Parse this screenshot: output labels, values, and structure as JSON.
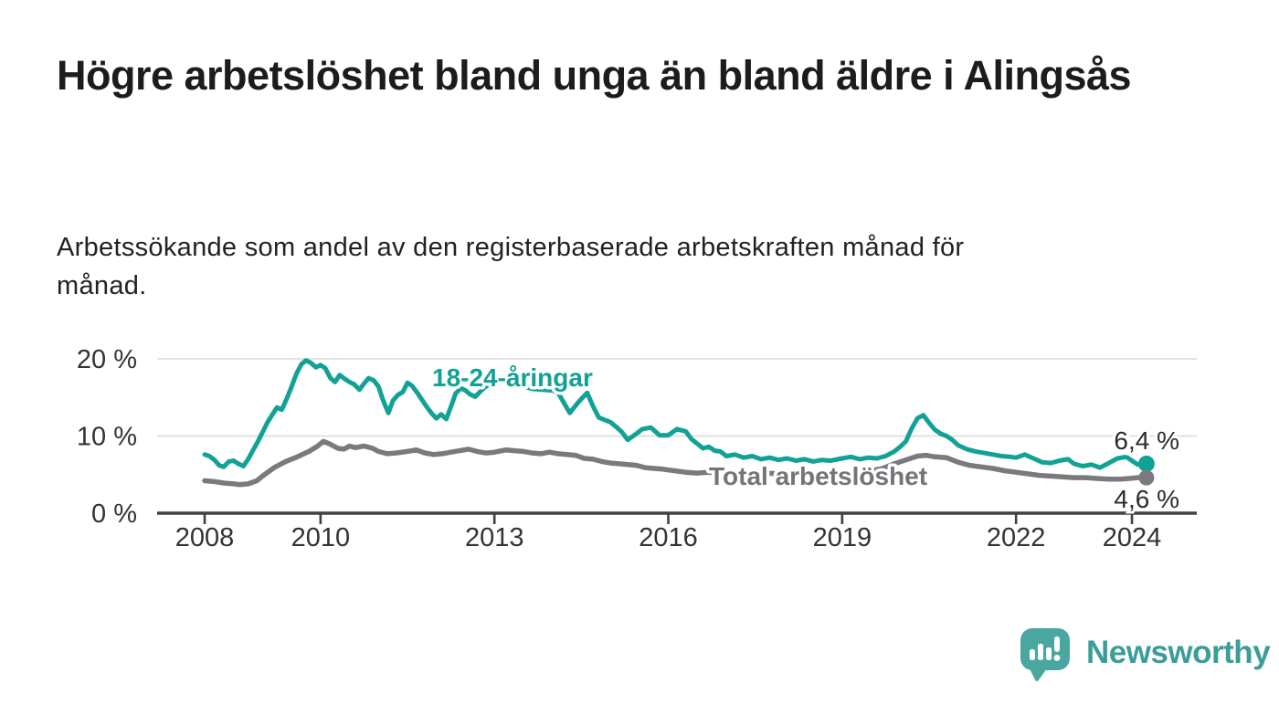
{
  "header": {
    "title": "Högre arbetslöshet bland unga än bland äldre i Alingsås",
    "subtitle": "Arbetssökande som andel av den registerbaserade arbetskraften månad för månad."
  },
  "chart_data": {
    "type": "line",
    "title": "Högre arbetslöshet bland unga än bland äldre i Alingsås",
    "unit": "%",
    "grid": "horizontal-only",
    "legend": "inline-series-labels",
    "x_axis": {
      "range": [
        2008,
        2025.1
      ],
      "ticks": [
        2008,
        2010,
        2013,
        2016,
        2019,
        2022,
        2024
      ],
      "tick_labels": [
        "2008",
        "2010",
        "2013",
        "2016",
        "2019",
        "2022",
        "2024"
      ]
    },
    "y_axis": {
      "range": [
        0,
        21
      ],
      "ticks": [
        0,
        10,
        20
      ],
      "tick_labels": [
        "0 %",
        "10 %",
        "20 %"
      ]
    },
    "colors": {
      "young": "#12a295",
      "total": "#7b787e",
      "grid": "#d9d9d9",
      "axis": "#404040",
      "tick_text": "#333333",
      "value_text": "#2b2b2b"
    },
    "series": [
      {
        "name": "18-24-åringar",
        "color": "#12a295",
        "label_color": "#12a295",
        "end_label": "6,4 %",
        "end_value": 6.4,
        "points": [
          [
            2008.0,
            7.6
          ],
          [
            2008.08,
            7.4
          ],
          [
            2008.17,
            6.9
          ],
          [
            2008.25,
            6.2
          ],
          [
            2008.33,
            6.0
          ],
          [
            2008.42,
            6.7
          ],
          [
            2008.5,
            6.8
          ],
          [
            2008.58,
            6.4
          ],
          [
            2008.67,
            6.1
          ],
          [
            2008.75,
            7.0
          ],
          [
            2008.83,
            8.1
          ],
          [
            2008.92,
            9.3
          ],
          [
            2009.0,
            10.5
          ],
          [
            2009.08,
            11.7
          ],
          [
            2009.17,
            12.8
          ],
          [
            2009.25,
            13.7
          ],
          [
            2009.33,
            13.4
          ],
          [
            2009.42,
            14.9
          ],
          [
            2009.5,
            16.4
          ],
          [
            2009.58,
            18.0
          ],
          [
            2009.67,
            19.3
          ],
          [
            2009.75,
            19.8
          ],
          [
            2009.83,
            19.5
          ],
          [
            2009.92,
            18.9
          ],
          [
            2010.0,
            19.2
          ],
          [
            2010.08,
            18.8
          ],
          [
            2010.17,
            17.5
          ],
          [
            2010.25,
            17.0
          ],
          [
            2010.33,
            17.9
          ],
          [
            2010.42,
            17.4
          ],
          [
            2010.5,
            17.0
          ],
          [
            2010.58,
            16.7
          ],
          [
            2010.67,
            16.0
          ],
          [
            2010.75,
            16.8
          ],
          [
            2010.83,
            17.5
          ],
          [
            2010.92,
            17.2
          ],
          [
            2011.0,
            16.4
          ],
          [
            2011.08,
            14.6
          ],
          [
            2011.17,
            13.0
          ],
          [
            2011.25,
            14.6
          ],
          [
            2011.33,
            15.3
          ],
          [
            2011.42,
            15.7
          ],
          [
            2011.5,
            16.9
          ],
          [
            2011.58,
            16.5
          ],
          [
            2011.67,
            15.6
          ],
          [
            2011.75,
            14.7
          ],
          [
            2011.83,
            13.8
          ],
          [
            2011.92,
            12.9
          ],
          [
            2012.0,
            12.3
          ],
          [
            2012.08,
            12.8
          ],
          [
            2012.17,
            12.2
          ],
          [
            2012.25,
            13.8
          ],
          [
            2012.33,
            15.5
          ],
          [
            2012.42,
            16.2
          ],
          [
            2012.5,
            15.9
          ],
          [
            2012.58,
            15.4
          ],
          [
            2012.67,
            15.1
          ],
          [
            2012.75,
            15.7
          ],
          [
            2012.83,
            16.3
          ],
          [
            2012.92,
            16.7
          ],
          [
            2013.0,
            16.9
          ],
          [
            2013.17,
            17.0
          ],
          [
            2013.33,
            16.7
          ],
          [
            2013.5,
            16.4
          ],
          [
            2013.67,
            16.1
          ],
          [
            2013.83,
            16.0
          ],
          [
            2014.0,
            15.9
          ],
          [
            2014.1,
            15.6
          ],
          [
            2014.2,
            14.3
          ],
          [
            2014.3,
            13.0
          ],
          [
            2014.45,
            14.4
          ],
          [
            2014.6,
            15.6
          ],
          [
            2014.7,
            13.9
          ],
          [
            2014.8,
            12.4
          ],
          [
            2014.9,
            12.1
          ],
          [
            2015.0,
            11.8
          ],
          [
            2015.1,
            11.2
          ],
          [
            2015.2,
            10.5
          ],
          [
            2015.3,
            9.5
          ],
          [
            2015.45,
            10.3
          ],
          [
            2015.55,
            10.9
          ],
          [
            2015.7,
            11.1
          ],
          [
            2015.85,
            10.1
          ],
          [
            2016.0,
            10.1
          ],
          [
            2016.15,
            10.9
          ],
          [
            2016.3,
            10.6
          ],
          [
            2016.4,
            9.6
          ],
          [
            2016.5,
            9.0
          ],
          [
            2016.6,
            8.4
          ],
          [
            2016.7,
            8.6
          ],
          [
            2016.8,
            8.1
          ],
          [
            2016.9,
            8.0
          ],
          [
            2017.0,
            7.4
          ],
          [
            2017.15,
            7.6
          ],
          [
            2017.3,
            7.2
          ],
          [
            2017.45,
            7.4
          ],
          [
            2017.6,
            7.0
          ],
          [
            2017.75,
            7.2
          ],
          [
            2017.9,
            6.9
          ],
          [
            2018.05,
            7.1
          ],
          [
            2018.2,
            6.8
          ],
          [
            2018.35,
            7.0
          ],
          [
            2018.5,
            6.7
          ],
          [
            2018.65,
            6.9
          ],
          [
            2018.8,
            6.8
          ],
          [
            2019.0,
            7.1
          ],
          [
            2019.15,
            7.3
          ],
          [
            2019.3,
            7.0
          ],
          [
            2019.45,
            7.2
          ],
          [
            2019.6,
            7.1
          ],
          [
            2019.75,
            7.4
          ],
          [
            2019.9,
            8.0
          ],
          [
            2020.0,
            8.6
          ],
          [
            2020.1,
            9.3
          ],
          [
            2020.2,
            11.0
          ],
          [
            2020.3,
            12.3
          ],
          [
            2020.4,
            12.7
          ],
          [
            2020.5,
            11.7
          ],
          [
            2020.6,
            10.8
          ],
          [
            2020.7,
            10.3
          ],
          [
            2020.8,
            10.0
          ],
          [
            2020.9,
            9.5
          ],
          [
            2021.0,
            8.8
          ],
          [
            2021.15,
            8.3
          ],
          [
            2021.3,
            8.0
          ],
          [
            2021.45,
            7.8
          ],
          [
            2021.6,
            7.6
          ],
          [
            2021.75,
            7.4
          ],
          [
            2021.9,
            7.3
          ],
          [
            2022.0,
            7.2
          ],
          [
            2022.15,
            7.6
          ],
          [
            2022.3,
            7.1
          ],
          [
            2022.45,
            6.6
          ],
          [
            2022.6,
            6.5
          ],
          [
            2022.75,
            6.8
          ],
          [
            2022.9,
            7.0
          ],
          [
            2023.0,
            6.4
          ],
          [
            2023.15,
            6.1
          ],
          [
            2023.3,
            6.3
          ],
          [
            2023.45,
            5.9
          ],
          [
            2023.6,
            6.5
          ],
          [
            2023.75,
            7.1
          ],
          [
            2023.9,
            7.3
          ],
          [
            2024.0,
            6.8
          ],
          [
            2024.1,
            6.3
          ],
          [
            2024.25,
            6.4
          ]
        ]
      },
      {
        "name": "Total arbetslöshet",
        "color": "#7b787e",
        "label_color": "#767379",
        "end_label": "4,6 %",
        "end_value": 4.6,
        "points": [
          [
            2008.0,
            4.2
          ],
          [
            2008.17,
            4.1
          ],
          [
            2008.33,
            3.9
          ],
          [
            2008.5,
            3.8
          ],
          [
            2008.6,
            3.7
          ],
          [
            2008.75,
            3.8
          ],
          [
            2008.9,
            4.2
          ],
          [
            2009.0,
            4.8
          ],
          [
            2009.2,
            5.9
          ],
          [
            2009.4,
            6.7
          ],
          [
            2009.6,
            7.3
          ],
          [
            2009.8,
            8.0
          ],
          [
            2009.95,
            8.7
          ],
          [
            2010.05,
            9.3
          ],
          [
            2010.15,
            9.0
          ],
          [
            2010.3,
            8.4
          ],
          [
            2010.4,
            8.3
          ],
          [
            2010.5,
            8.7
          ],
          [
            2010.6,
            8.5
          ],
          [
            2010.75,
            8.7
          ],
          [
            2010.9,
            8.4
          ],
          [
            2011.0,
            8.0
          ],
          [
            2011.15,
            7.7
          ],
          [
            2011.3,
            7.8
          ],
          [
            2011.5,
            8.0
          ],
          [
            2011.65,
            8.2
          ],
          [
            2011.8,
            7.8
          ],
          [
            2011.95,
            7.6
          ],
          [
            2012.1,
            7.7
          ],
          [
            2012.25,
            7.9
          ],
          [
            2012.4,
            8.1
          ],
          [
            2012.55,
            8.3
          ],
          [
            2012.7,
            8.0
          ],
          [
            2012.85,
            7.8
          ],
          [
            2013.0,
            7.9
          ],
          [
            2013.2,
            8.2
          ],
          [
            2013.35,
            8.1
          ],
          [
            2013.5,
            8.0
          ],
          [
            2013.65,
            7.8
          ],
          [
            2013.8,
            7.7
          ],
          [
            2013.95,
            7.9
          ],
          [
            2014.1,
            7.7
          ],
          [
            2014.25,
            7.6
          ],
          [
            2014.4,
            7.5
          ],
          [
            2014.55,
            7.1
          ],
          [
            2014.7,
            7.0
          ],
          [
            2014.85,
            6.7
          ],
          [
            2015.0,
            6.5
          ],
          [
            2015.15,
            6.4
          ],
          [
            2015.3,
            6.3
          ],
          [
            2015.45,
            6.2
          ],
          [
            2015.6,
            5.9
          ],
          [
            2015.75,
            5.8
          ],
          [
            2015.9,
            5.7
          ],
          [
            2016.1,
            5.5
          ],
          [
            2016.3,
            5.3
          ],
          [
            2016.5,
            5.2
          ],
          [
            2016.7,
            5.3
          ],
          [
            2016.9,
            5.2
          ],
          [
            2017.1,
            5.3
          ],
          [
            2017.3,
            5.2
          ],
          [
            2017.5,
            5.1
          ],
          [
            2017.7,
            5.2
          ],
          [
            2017.9,
            5.1
          ],
          [
            2018.1,
            5.2
          ],
          [
            2018.3,
            5.1
          ],
          [
            2018.5,
            5.0
          ],
          [
            2018.7,
            5.1
          ],
          [
            2018.9,
            5.2
          ],
          [
            2019.1,
            5.3
          ],
          [
            2019.3,
            5.4
          ],
          [
            2019.5,
            5.5
          ],
          [
            2019.7,
            5.8
          ],
          [
            2019.9,
            6.4
          ],
          [
            2020.1,
            6.9
          ],
          [
            2020.3,
            7.4
          ],
          [
            2020.45,
            7.5
          ],
          [
            2020.6,
            7.3
          ],
          [
            2020.8,
            7.2
          ],
          [
            2021.0,
            6.6
          ],
          [
            2021.2,
            6.2
          ],
          [
            2021.4,
            6.0
          ],
          [
            2021.6,
            5.8
          ],
          [
            2021.8,
            5.5
          ],
          [
            2022.0,
            5.3
          ],
          [
            2022.2,
            5.1
          ],
          [
            2022.4,
            4.9
          ],
          [
            2022.6,
            4.8
          ],
          [
            2022.8,
            4.7
          ],
          [
            2023.0,
            4.6
          ],
          [
            2023.2,
            4.6
          ],
          [
            2023.4,
            4.5
          ],
          [
            2023.6,
            4.4
          ],
          [
            2023.8,
            4.4
          ],
          [
            2023.95,
            4.5
          ],
          [
            2024.1,
            4.6
          ],
          [
            2024.25,
            4.6
          ]
        ]
      }
    ]
  },
  "footer": {
    "brand": "Newsworthy",
    "brand_color": "#3a9e98",
    "icon_color": "#4aa7a0"
  }
}
